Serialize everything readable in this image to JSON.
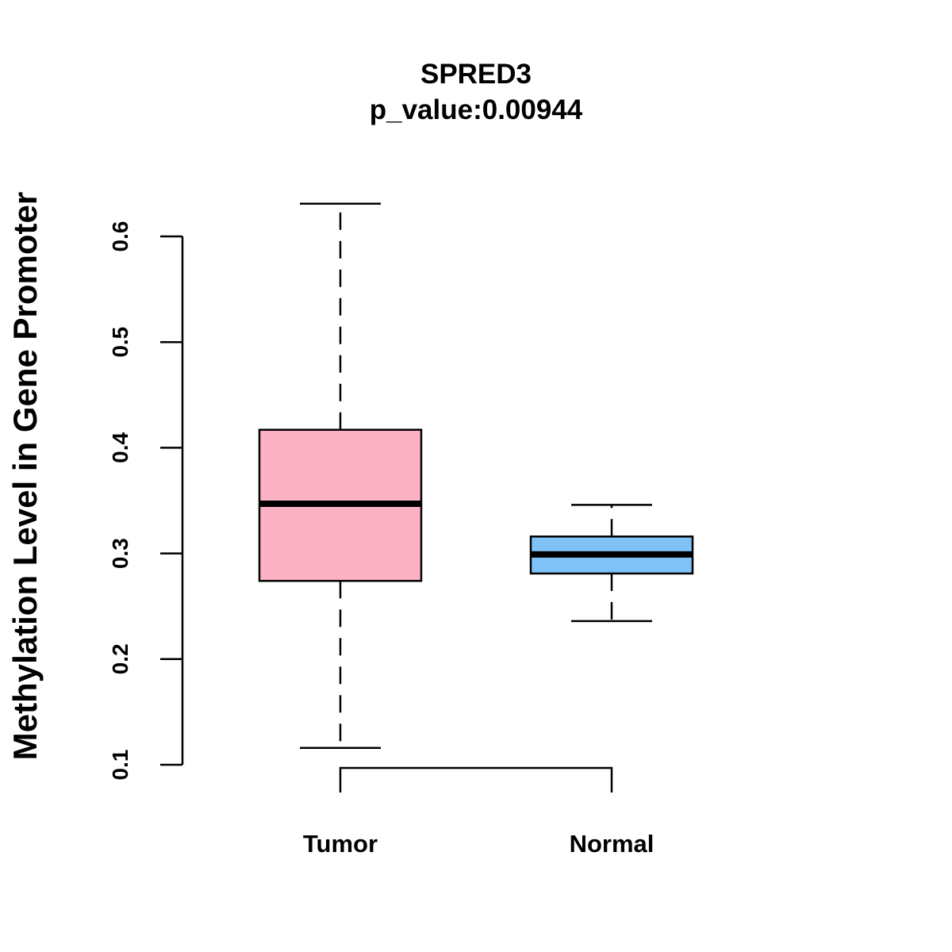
{
  "chart_data": {
    "type": "box",
    "title": "SPRED3",
    "subtitle": "p_value:0.00944",
    "ylabel": "Methylation Level in Gene Promoter",
    "xlabel": "",
    "ylim": [
      0.1,
      0.6
    ],
    "yticks": [
      "0.1",
      "0.2",
      "0.3",
      "0.4",
      "0.5",
      "0.6"
    ],
    "categories": [
      "Tumor",
      "Normal"
    ],
    "boxes": [
      {
        "name": "Tumor",
        "min": 0.116,
        "q1": 0.274,
        "median": 0.347,
        "q3": 0.417,
        "max": 0.631,
        "color": "#FDB1C4"
      },
      {
        "name": "Normal",
        "min": 0.236,
        "q1": 0.281,
        "median": 0.299,
        "q3": 0.316,
        "max": 0.346,
        "color": "#7FC2F7"
      }
    ],
    "significance_bracket": {
      "from": "Tumor",
      "to": "Normal",
      "level": 0.097
    }
  }
}
